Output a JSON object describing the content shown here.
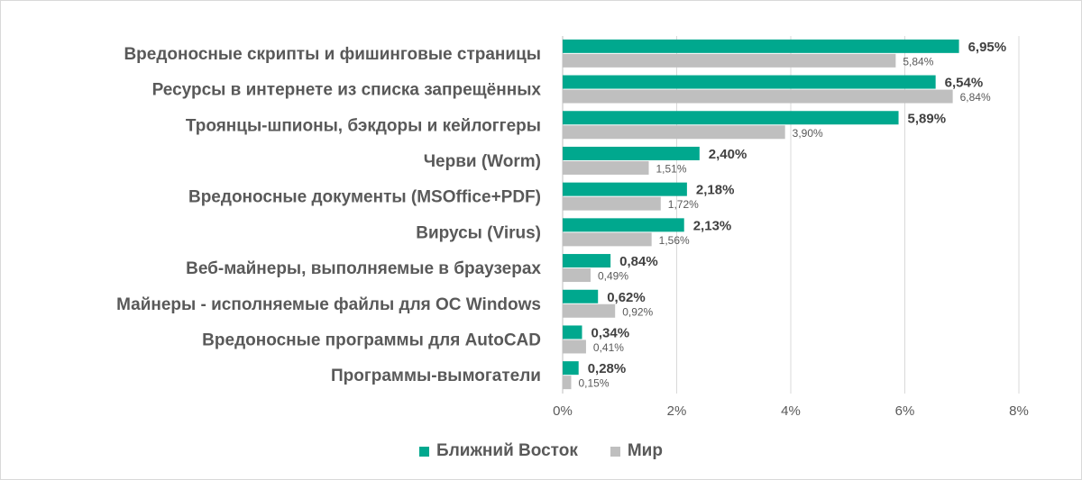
{
  "chart_data": {
    "type": "bar",
    "orientation": "horizontal",
    "categories": [
      "Вредоносные скрипты и фишинговые страницы",
      "Ресурсы в интернете из списка запрещённых",
      "Троянцы-шпионы, бэкдоры и кейлоггеры",
      "Черви (Worm)",
      "Вредоносные документы (MSOffice+PDF)",
      "Вирусы (Virus)",
      "Веб-майнеры, выполняемые в браузерах",
      "Майнеры - исполняемые файлы для ОС Windows",
      "Вредоносные программы для AutoCAD",
      "Программы-вымогатели"
    ],
    "series": [
      {
        "name": "Ближний Восток",
        "color": "#00A88E",
        "values": [
          6.95,
          6.54,
          5.89,
          2.4,
          2.18,
          2.13,
          0.84,
          0.62,
          0.34,
          0.28
        ],
        "labels": [
          "6,95%",
          "6,54%",
          "5,89%",
          "2,40%",
          "2,18%",
          "2,13%",
          "0,84%",
          "0,62%",
          "0,34%",
          "0,28%"
        ]
      },
      {
        "name": "Мир",
        "color": "#BFBFBF",
        "values": [
          5.84,
          6.84,
          3.9,
          1.51,
          1.72,
          1.56,
          0.49,
          0.92,
          0.41,
          0.15
        ],
        "labels": [
          "5,84%",
          "6,84%",
          "3,90%",
          "1,51%",
          "1,72%",
          "1,56%",
          "0,49%",
          "0,92%",
          "0,41%",
          "0,15%"
        ]
      }
    ],
    "xlim": [
      0,
      8
    ],
    "xticks": [
      0,
      2,
      4,
      6,
      8
    ],
    "xtick_labels": [
      "0%",
      "2%",
      "4%",
      "6%",
      "8%"
    ],
    "grid": "vertical",
    "legend_position": "bottom-center",
    "title": "",
    "xlabel": "",
    "ylabel": ""
  }
}
